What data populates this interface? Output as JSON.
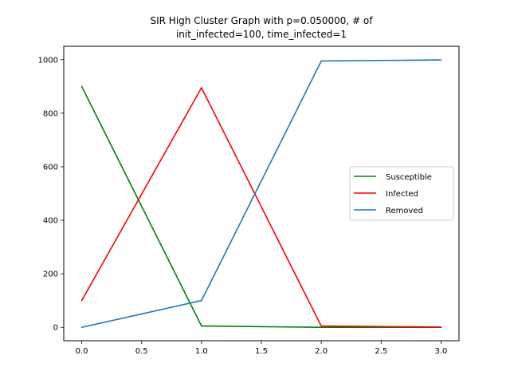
{
  "chart_data": {
    "type": "line",
    "title_line1": "SIR High Cluster Graph with p=0.050000, # of",
    "title_line2": "init_infected=100, time_infected=1",
    "xlabel": "",
    "ylabel": "",
    "x": [
      0,
      1,
      2,
      3
    ],
    "xlim": [
      -0.15,
      3.15
    ],
    "ylim": [
      -50,
      1050
    ],
    "xticks": [
      0.0,
      0.5,
      1.0,
      1.5,
      2.0,
      2.5,
      3.0
    ],
    "xtick_labels": [
      "0.0",
      "0.5",
      "1.0",
      "1.5",
      "2.0",
      "2.5",
      "3.0"
    ],
    "yticks": [
      0,
      200,
      400,
      600,
      800,
      1000
    ],
    "ytick_labels": [
      "0",
      "200",
      "400",
      "600",
      "800",
      "1000"
    ],
    "grid": false,
    "legend_position": "center-right",
    "series": [
      {
        "name": "Susceptible",
        "color": "#008000",
        "values": [
          900,
          5,
          0,
          0
        ]
      },
      {
        "name": "Infected",
        "color": "#ff0000",
        "values": [
          100,
          895,
          5,
          1
        ]
      },
      {
        "name": "Removed",
        "color": "#1f77b4",
        "values": [
          0,
          100,
          995,
          999
        ]
      }
    ]
  }
}
